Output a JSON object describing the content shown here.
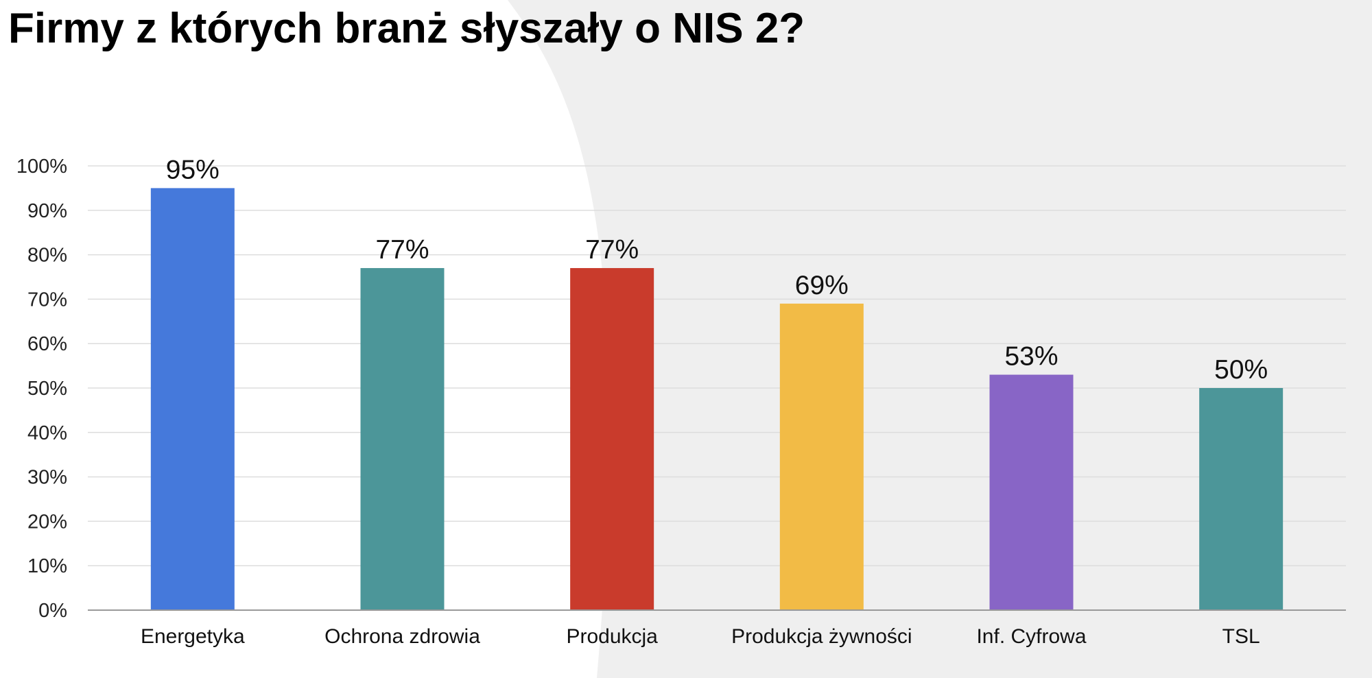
{
  "chart_data": {
    "type": "bar",
    "title": "Firmy z których branż słyszały o NIS 2?",
    "xlabel": "",
    "ylabel": "",
    "categories": [
      "Energetyka",
      "Ochrona zdrowia",
      "Produkcja",
      "Produkcja żywności",
      "Inf. Cyfrowa",
      "TSL"
    ],
    "values": [
      95,
      77,
      77,
      69,
      53,
      50
    ],
    "data_labels": [
      "95%",
      "77%",
      "77%",
      "69%",
      "53%",
      "50%"
    ],
    "bar_colors": [
      "#4579db",
      "#4c9699",
      "#c93b2c",
      "#f2bb46",
      "#8865c6",
      "#4c9699"
    ],
    "ylim": [
      0,
      100
    ],
    "y_ticks": [
      0,
      10,
      20,
      30,
      40,
      50,
      60,
      70,
      80,
      90,
      100
    ],
    "y_tick_labels": [
      "0%",
      "10%",
      "20%",
      "30%",
      "40%",
      "50%",
      "60%",
      "70%",
      "80%",
      "90%",
      "100%"
    ],
    "grid": true,
    "legend": "none"
  },
  "colors": {
    "background": "#ffffff",
    "background_shape": "#efefef",
    "gridline": "#dddddd",
    "baseline": "#999999"
  }
}
